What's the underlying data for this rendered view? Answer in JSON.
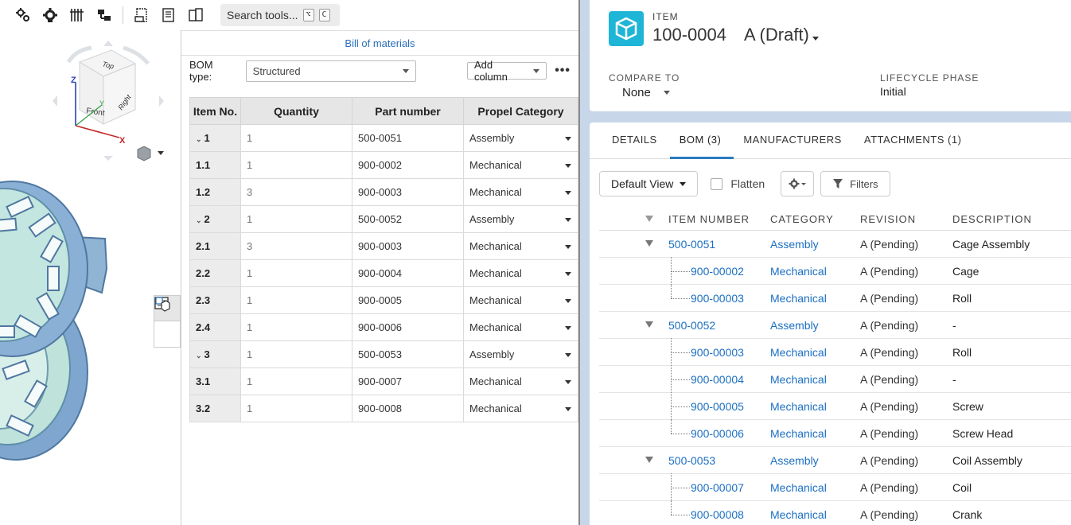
{
  "cad": {
    "toolbar": {
      "icons": [
        "gears-icon",
        "gear-settings-icon",
        "configuration-icon",
        "assembly-icon",
        "drawing-icon",
        "bom-icon",
        "copy-icon"
      ],
      "search_label": "Search tools...",
      "search_shortcut": [
        "⌥",
        "C"
      ]
    },
    "view_cube": {
      "faces": {
        "top": "Top",
        "front": "Front",
        "right": "Right"
      },
      "axes": {
        "x": "X",
        "y": "Y",
        "z": "Z"
      }
    },
    "bom": {
      "title": "Bill of materials",
      "type_label": "BOM type:",
      "type_value": "Structured",
      "add_column_label": "Add column",
      "more_label": "•••",
      "columns": [
        "Item No.",
        "Quantity",
        "Part number",
        "Propel Category"
      ],
      "rows": [
        {
          "item": "1",
          "expand": "⌄",
          "qty": "1",
          "part": "500-0051",
          "cat": "Assembly"
        },
        {
          "item": "1.1",
          "expand": "",
          "qty": "1",
          "part": "900-0002",
          "cat": "Mechanical"
        },
        {
          "item": "1.2",
          "expand": "",
          "qty": "3",
          "part": "900-0003",
          "cat": "Mechanical"
        },
        {
          "item": "2",
          "expand": "⌄",
          "qty": "1",
          "part": "500-0052",
          "cat": "Assembly"
        },
        {
          "item": "2.1",
          "expand": "",
          "qty": "3",
          "part": "900-0003",
          "cat": "Mechanical"
        },
        {
          "item": "2.2",
          "expand": "",
          "qty": "1",
          "part": "900-0004",
          "cat": "Mechanical"
        },
        {
          "item": "2.3",
          "expand": "",
          "qty": "1",
          "part": "900-0005",
          "cat": "Mechanical"
        },
        {
          "item": "2.4",
          "expand": "",
          "qty": "1",
          "part": "900-0006",
          "cat": "Mechanical"
        },
        {
          "item": "3",
          "expand": "⌄",
          "qty": "1",
          "part": "500-0053",
          "cat": "Assembly"
        },
        {
          "item": "3.1",
          "expand": "",
          "qty": "1",
          "part": "900-0007",
          "cat": "Mechanical"
        },
        {
          "item": "3.2",
          "expand": "",
          "qty": "1",
          "part": "900-0008",
          "cat": "Mechanical"
        }
      ]
    }
  },
  "plm": {
    "kicker": "ITEM",
    "item_number": "100-0004",
    "revision": "A (Draft)",
    "compare_label": "COMPARE TO",
    "compare_value": "None",
    "lifecycle_label": "LIFECYCLE PHASE",
    "lifecycle_value": "Initial",
    "tabs": [
      {
        "label": "DETAILS",
        "active": false
      },
      {
        "label": "BOM (3)",
        "active": true
      },
      {
        "label": "MANUFACTURERS",
        "active": false
      },
      {
        "label": "ATTACHMENTS (1)",
        "active": false
      }
    ],
    "view_label": "Default View",
    "flatten_label": "Flatten",
    "filters_label": "Filters",
    "columns": [
      "ITEM NUMBER",
      "CATEGORY",
      "REVISION",
      "DESCRIPTION"
    ],
    "rows": [
      {
        "num": "500-0051",
        "cat": "Assembly",
        "rev": "A (Pending)",
        "desc": "Cage Assembly",
        "level": 0
      },
      {
        "num": "900-00002",
        "cat": "Mechanical",
        "rev": "A (Pending)",
        "desc": "Cage",
        "level": 1
      },
      {
        "num": "900-00003",
        "cat": "Mechanical",
        "rev": "A (Pending)",
        "desc": "Roll",
        "level": 1
      },
      {
        "num": "500-0052",
        "cat": "Assembly",
        "rev": "A (Pending)",
        "desc": "-",
        "level": 0
      },
      {
        "num": "900-00003",
        "cat": "Mechanical",
        "rev": "A (Pending)",
        "desc": "Roll",
        "level": 1
      },
      {
        "num": "900-00004",
        "cat": "Mechanical",
        "rev": "A (Pending)",
        "desc": "-",
        "level": 1
      },
      {
        "num": "900-00005",
        "cat": "Mechanical",
        "rev": "A (Pending)",
        "desc": "Screw",
        "level": 1
      },
      {
        "num": "900-00006",
        "cat": "Mechanical",
        "rev": "A (Pending)",
        "desc": "Screw Head",
        "level": 1
      },
      {
        "num": "500-0053",
        "cat": "Assembly",
        "rev": "A (Pending)",
        "desc": "Coil Assembly",
        "level": 0
      },
      {
        "num": "900-00007",
        "cat": "Mechanical",
        "rev": "A (Pending)",
        "desc": "Coil",
        "level": 1
      },
      {
        "num": "900-00008",
        "cat": "Mechanical",
        "rev": "A (Pending)",
        "desc": "Crank",
        "level": 1
      }
    ]
  },
  "colors": {
    "link": "#1b6fc2",
    "accent_teal": "#1fb5d6",
    "plm_bg": "#c7d6e8",
    "bom_title": "#2a6ebb"
  }
}
